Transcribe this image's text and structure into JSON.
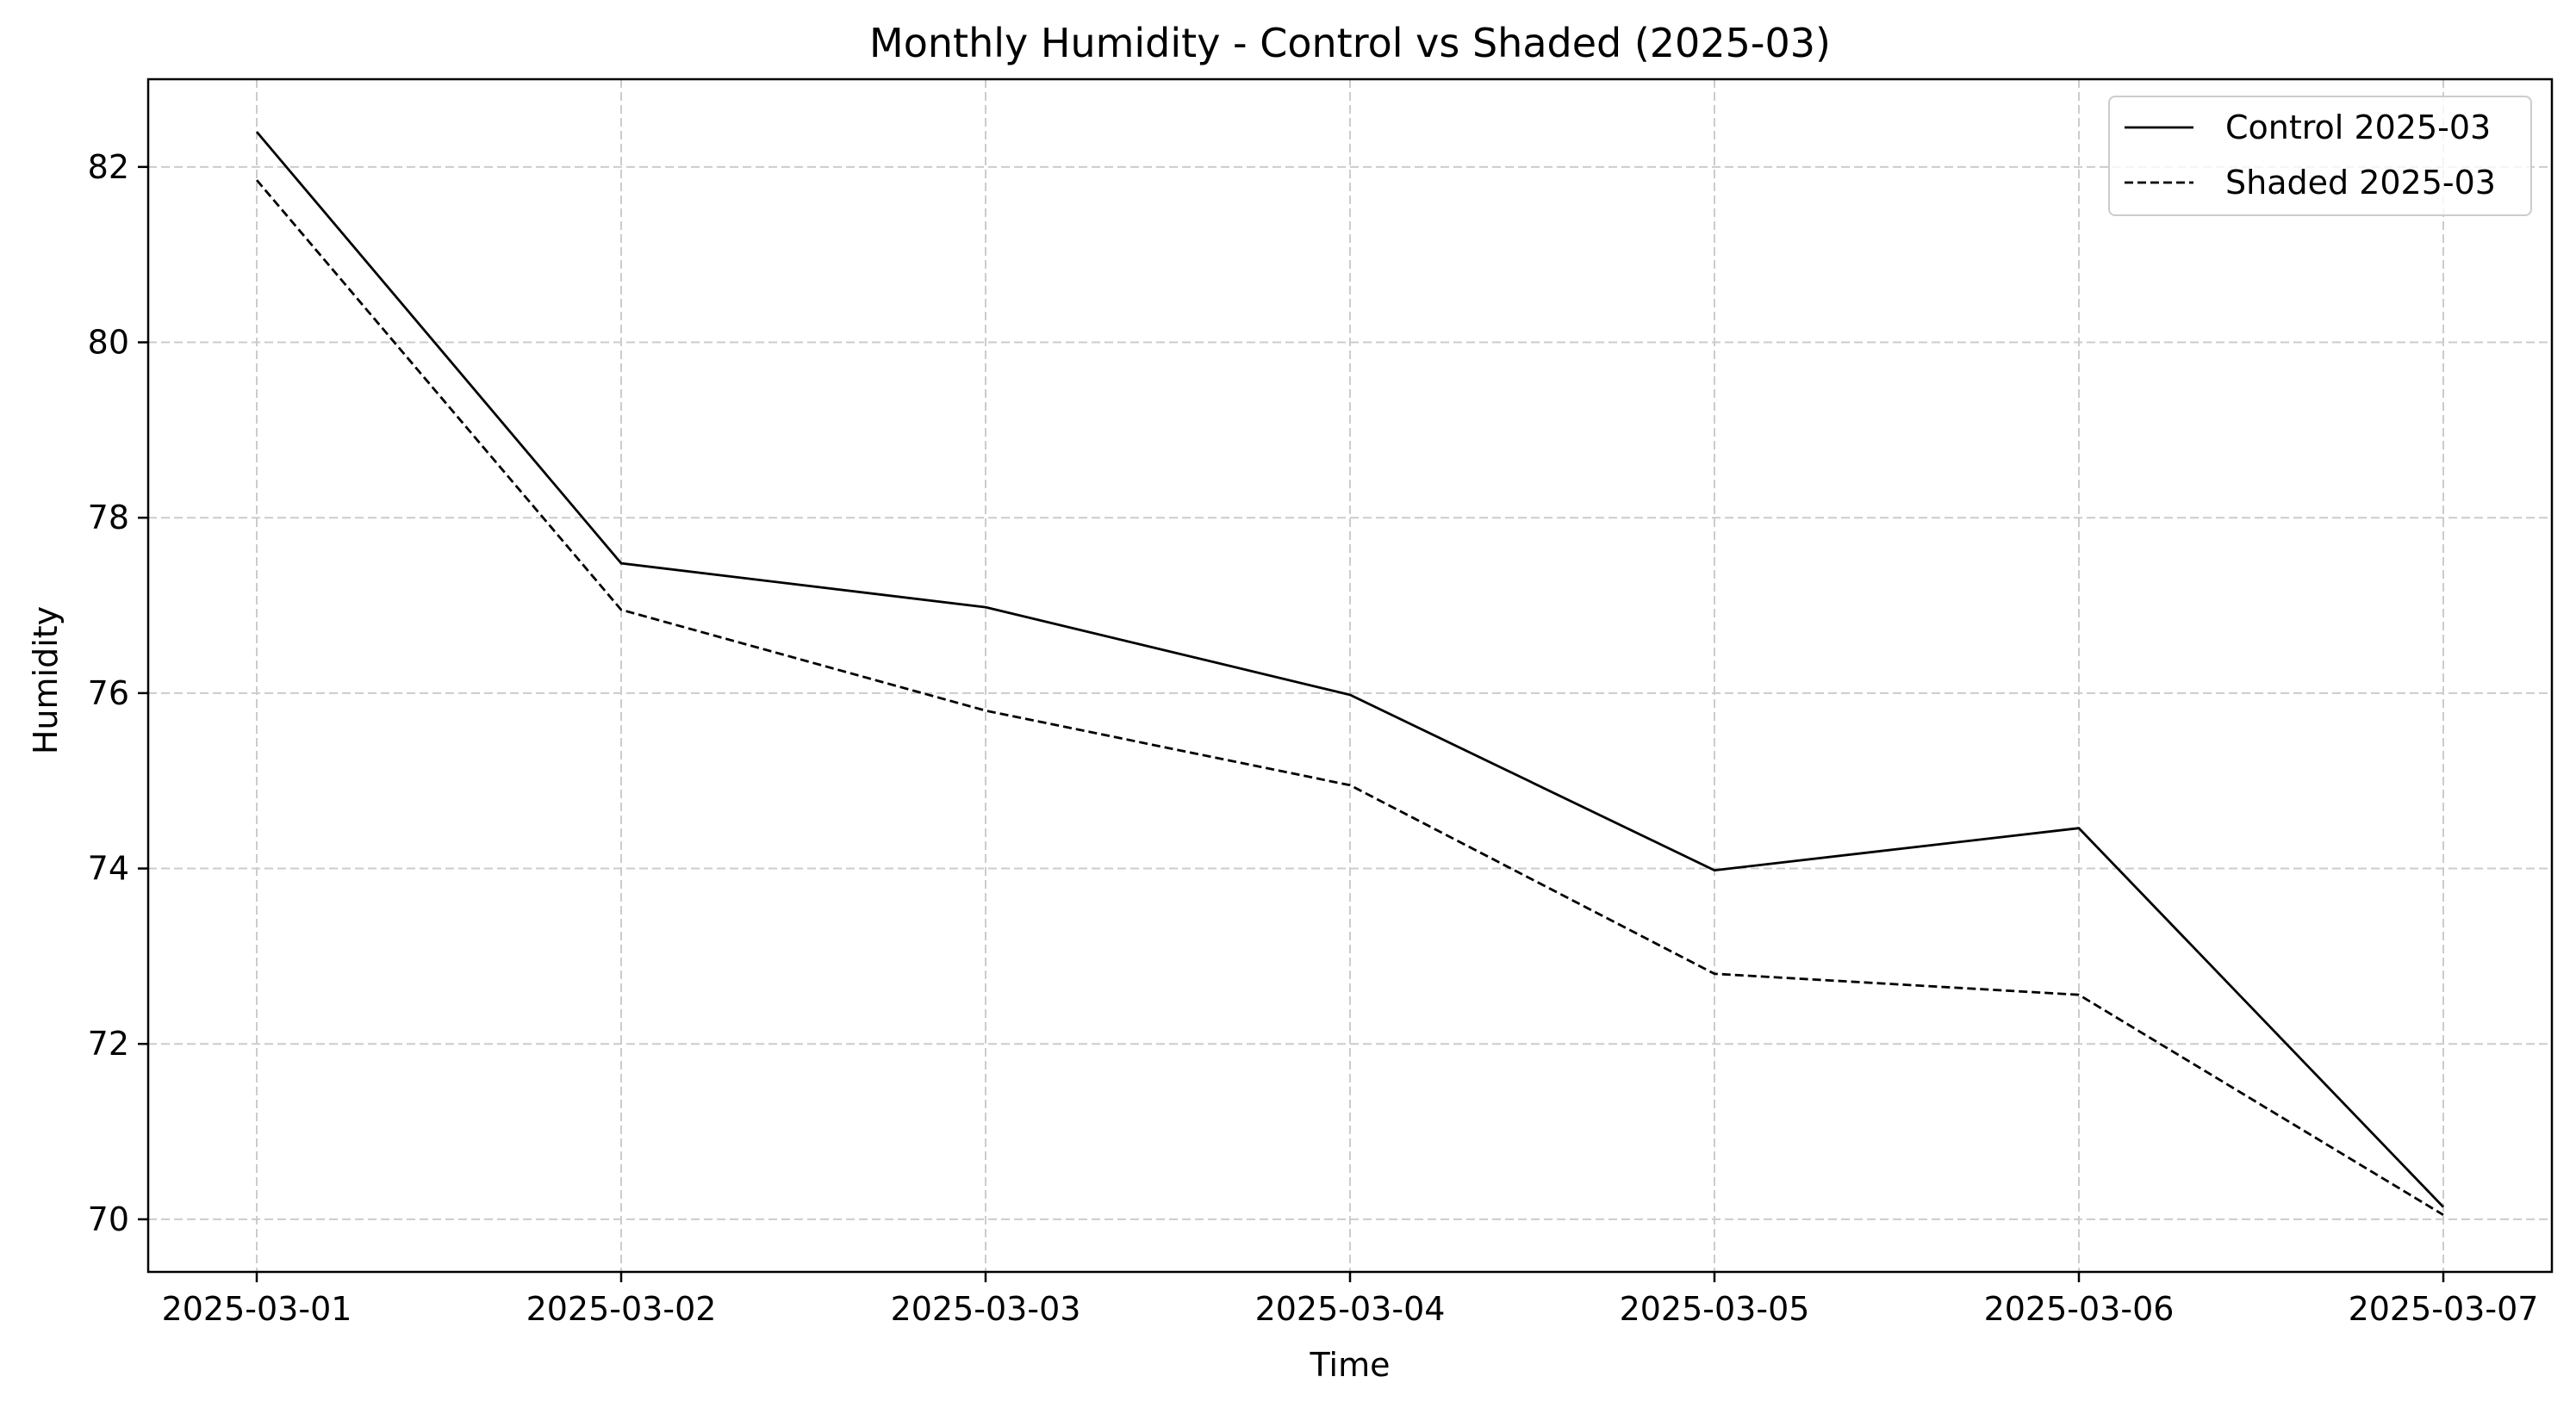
{
  "chart_data": {
    "type": "line",
    "title": "Monthly Humidity - Control vs Shaded (2025-03)",
    "xlabel": "Time",
    "ylabel": "Humidity",
    "x": [
      "2025-03-01",
      "2025-03-02",
      "2025-03-03",
      "2025-03-04",
      "2025-03-05",
      "2025-03-06",
      "2025-03-07"
    ],
    "xlim": [
      "2025-03-01",
      "2025-03-07"
    ],
    "ylim": [
      69.4,
      83.0
    ],
    "yticks": [
      70,
      72,
      74,
      76,
      78,
      80,
      82
    ],
    "grid": true,
    "legend_position": "top-right",
    "series": [
      {
        "name": "Control 2025-03",
        "values": [
          82.4,
          77.48,
          76.98,
          75.98,
          73.98,
          74.46,
          70.14
        ],
        "color": "#000000",
        "line_style": "solid"
      },
      {
        "name": "Shaded 2025-03",
        "values": [
          81.85,
          76.95,
          75.8,
          74.95,
          72.8,
          72.56,
          70.05
        ],
        "color": "#000000",
        "line_style": "dashed"
      }
    ]
  },
  "colors": {
    "grid": "#cccccc",
    "axis": "#000000",
    "background": "#ffffff"
  }
}
